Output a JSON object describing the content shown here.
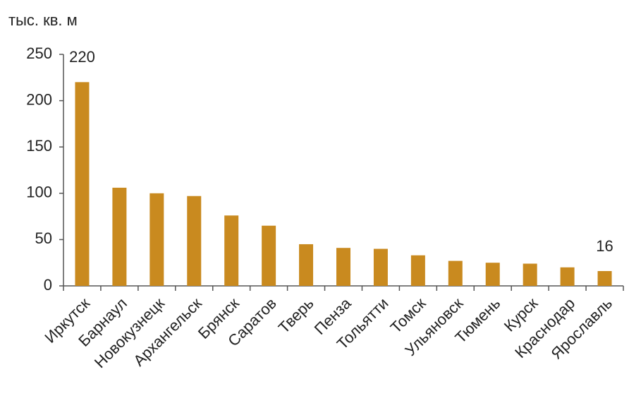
{
  "chart_data": {
    "type": "bar",
    "y_unit_label": "тыс. кв. м",
    "categories": [
      "Иркутск",
      "Барнаул",
      "Новокузнецк",
      "Архангельск",
      "Брянск",
      "Саратов",
      "Тверь",
      "Пенза",
      "Тольятти",
      "Томск",
      "Ульяновск",
      "Тюмень",
      "Курск",
      "Краснодар",
      "Ярославль"
    ],
    "values": [
      220,
      106,
      100,
      97,
      76,
      65,
      45,
      41,
      40,
      33,
      27,
      25,
      24,
      20,
      16
    ],
    "value_labels": [
      "220",
      null,
      null,
      null,
      null,
      null,
      null,
      null,
      null,
      null,
      null,
      null,
      null,
      null,
      "16"
    ],
    "color": "#c98a1f",
    "ylim": [
      0,
      250
    ],
    "yticks": [
      0,
      50,
      100,
      150,
      200,
      250
    ],
    "grid": false
  }
}
